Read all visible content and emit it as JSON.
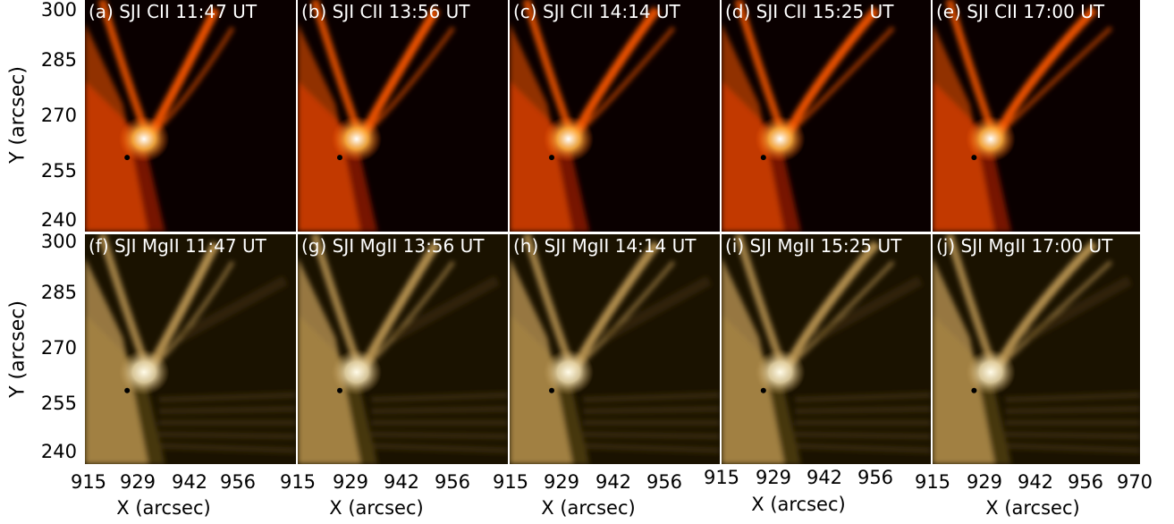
{
  "panels": [
    {
      "label": "(a) SJI CII 11:47 UT",
      "band": "CII",
      "letter": "a",
      "time": "11:47"
    },
    {
      "label": "(b) SJI CII 13:56 UT",
      "band": "CII",
      "letter": "b",
      "time": "13:56"
    },
    {
      "label": "(c) SJI CII 14:14 UT",
      "band": "CII",
      "letter": "c",
      "time": "14:14"
    },
    {
      "label": "(d) SJI CII 15:25 UT",
      "band": "CII",
      "letter": "d",
      "time": "15:25"
    },
    {
      "label": "(e) SJI CII 17:00 UT",
      "band": "CII",
      "letter": "e",
      "time": "17:00"
    },
    {
      "label": "(f) SJI MgII 11:47 UT",
      "band": "MgII",
      "letter": "f",
      "time": "11:47"
    },
    {
      "label": "(g) SJI MgII 13:56 UT",
      "band": "MgII",
      "letter": "g",
      "time": "13:56"
    },
    {
      "label": "(h) SJI MgII 14:14 UT",
      "band": "MgII",
      "letter": "h",
      "time": "14:14"
    },
    {
      "label": "(i) SJI MgII 15:25 UT",
      "band": "MgII",
      "letter": "i",
      "time": "15:25"
    },
    {
      "label": "(j) SJI MgII 17:00 UT",
      "band": "MgII",
      "letter": "j",
      "time": "17:00"
    }
  ],
  "axes": {
    "ylabel": "Y (arcsec)",
    "xlabel": "X (arcsec)",
    "yticks": [
      "300",
      "285",
      "270",
      "255",
      "240"
    ],
    "xticks_col1": [
      "915",
      "929",
      "942",
      "956"
    ],
    "xticks_col2": [
      "915",
      "929",
      "942",
      "956"
    ],
    "xticks_col3": [
      "915",
      "929",
      "942",
      "956"
    ],
    "xticks_col4": [
      "915",
      "929",
      "942",
      "956"
    ],
    "xticks_col5": [
      "915",
      "929",
      "942",
      "956",
      "970"
    ]
  },
  "colors": {
    "cii_background": "#0a0000",
    "cii_bright": "#ffffff",
    "cii_mid": "#ff5a00",
    "cii_dark": "#8a1400",
    "mgii_background": "#1a1200",
    "mgii_bright": "#fffbe8",
    "mgii_mid": "#c09a55",
    "mgii_dark": "#4a3810"
  }
}
